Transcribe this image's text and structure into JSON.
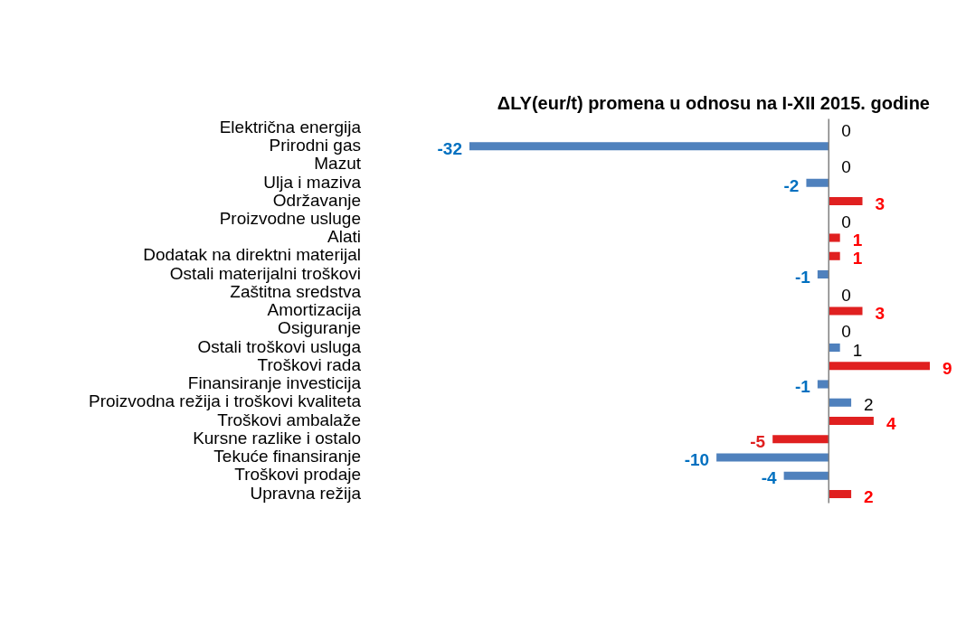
{
  "chart_data": {
    "type": "bar",
    "orientation": "horizontal",
    "title": "ΔLY(eur/t) promena u odnosu na I-XII 2015. godine",
    "categories": [
      "Električna energija",
      "Prirodni gas",
      "Mazut",
      "Ulja i maziva",
      "Održavanje",
      "Proizvodne usluge",
      "Alati",
      "Dodatak na direktni materijal",
      "Ostali materijalni troškovi",
      "Zaštitna sredstva",
      "Amortizacija",
      "Osiguranje",
      "Ostali troškovi usluga",
      "Troškovi rada",
      "Finansiranje investicija",
      "Proizvodna režija i troškovi kvaliteta",
      "Troškovi ambalaže",
      "Kursne razlike i ostalo",
      "Tekuće finansiranje",
      "Troškovi prodaje",
      "Upravna režija"
    ],
    "values": [
      0,
      -32,
      0,
      -2,
      3,
      0,
      1,
      1,
      -1,
      0,
      3,
      0,
      1,
      9,
      -1,
      2,
      4,
      -5,
      -10,
      -4,
      2
    ],
    "colors": [
      "#4f81bd",
      "#4f81bd",
      "#4f81bd",
      "#4f81bd",
      "#e02020",
      "#4f81bd",
      "#e02020",
      "#e02020",
      "#4f81bd",
      "#4f81bd",
      "#e02020",
      "#4f81bd",
      "#4f81bd",
      "#e02020",
      "#4f81bd",
      "#4f81bd",
      "#e02020",
      "#e02020",
      "#4f81bd",
      "#4f81bd",
      "#e02020"
    ],
    "xlim": [
      -32,
      9
    ],
    "tick_labels": "y",
    "legend": false,
    "data_labels": true
  }
}
